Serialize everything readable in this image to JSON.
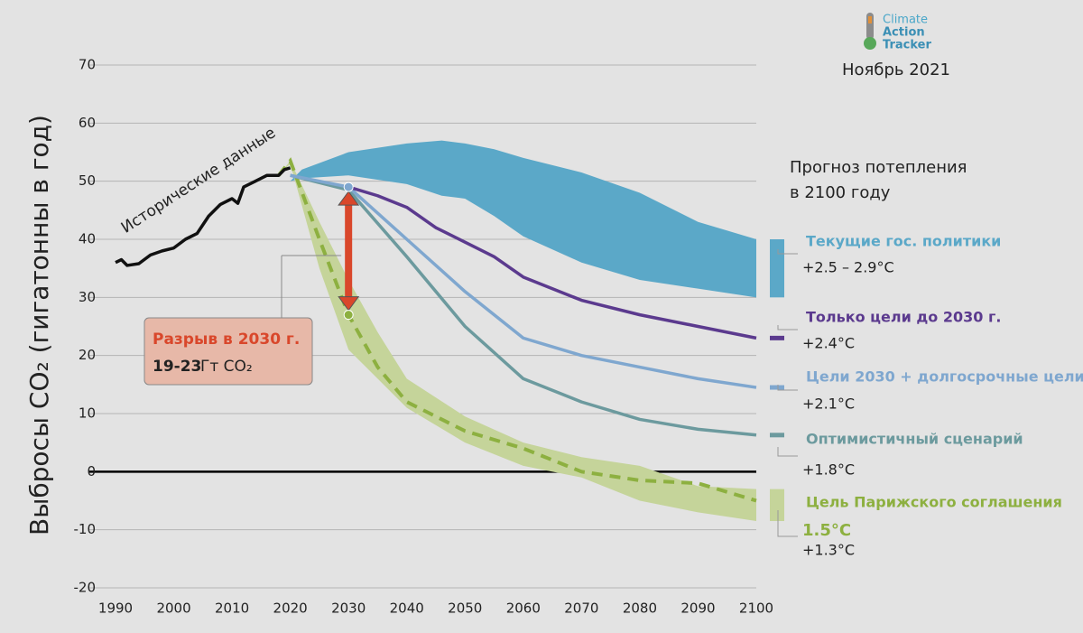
{
  "chart_data": {
    "type": "line",
    "ylabel": "Выбросы CO₂ (гигатонны в год)",
    "logo": [
      "Climate",
      "Action",
      "Tracker"
    ],
    "date": "Ноябрь 2021",
    "legend_title": [
      "Прогноз потепления",
      "в 2100 году"
    ],
    "xlim": [
      1990,
      2100
    ],
    "xticks": [
      1990,
      2000,
      2010,
      2020,
      2030,
      2040,
      2050,
      2060,
      2070,
      2080,
      2090,
      2100
    ],
    "ylim": [
      -20,
      70
    ],
    "yticks": [
      -20,
      -10,
      0,
      10,
      20,
      30,
      40,
      50,
      60,
      70
    ],
    "grid": true,
    "series": [
      {
        "name": "Исторические данные",
        "kind": "line",
        "color": "#111111",
        "x": [
          1990,
          1991,
          1992,
          1994,
          1996,
          1998,
          2000,
          2002,
          2004,
          2006,
          2008,
          2009,
          2010,
          2011,
          2012,
          2014,
          2016,
          2018,
          2019,
          2020
        ],
        "values": [
          36,
          36.5,
          35.5,
          35.8,
          37.3,
          38,
          38.5,
          40,
          41,
          44,
          46,
          46.5,
          47,
          46.2,
          49,
          50,
          51,
          51,
          52,
          52.3
        ]
      },
      {
        "name": "Текущие гос. политики",
        "warming": "+2.5 – 2.9°C",
        "kind": "band",
        "color": "#5ba8c8",
        "x": [
          2020,
          2022,
          2030,
          2040,
          2046,
          2050,
          2055,
          2060,
          2070,
          2080,
          2090,
          2100
        ],
        "upper": [
          50,
          52,
          55,
          56.5,
          57,
          56.5,
          55.5,
          54,
          51.5,
          48,
          43,
          40
        ],
        "lower": [
          50,
          50.5,
          51,
          49.5,
          47.5,
          47,
          44,
          40.5,
          36,
          33,
          31.5,
          30
        ]
      },
      {
        "name": "Только цели до 2030 г.",
        "warming": "+2.4°C",
        "kind": "line",
        "color": "#5b3a8e",
        "x": [
          2030,
          2035,
          2040,
          2045,
          2050,
          2055,
          2060,
          2070,
          2080,
          2090,
          2100
        ],
        "values": [
          49,
          47.5,
          45.5,
          42,
          39.5,
          37,
          33.5,
          29.5,
          27,
          25,
          23
        ]
      },
      {
        "name": "Цели 2030 + долгосрочные цели",
        "warming": "+2.1°C",
        "kind": "line",
        "color": "#7fa7cf",
        "x": [
          2020,
          2030,
          2040,
          2050,
          2060,
          2070,
          2080,
          2090,
          2100
        ],
        "values": [
          51,
          49,
          40,
          31,
          23,
          20,
          18,
          16,
          14.5
        ]
      },
      {
        "name": "Оптимистичный сценарий",
        "warming": "+1.8°C",
        "kind": "line",
        "color": "#6c9a9e",
        "x": [
          2020,
          2030,
          2040,
          2050,
          2060,
          2070,
          2080,
          2090,
          2100
        ],
        "values": [
          51,
          48.5,
          37,
          25,
          16,
          12,
          9,
          7.3,
          6.3
        ]
      },
      {
        "name": "Цель Парижского соглашения",
        "target": "1.5°C",
        "warming": "+1.3°C",
        "kind": "band",
        "color": "#c5d49a",
        "line_color": "#8db040",
        "x": [
          2018,
          2020,
          2025,
          2030,
          2035,
          2040,
          2050,
          2060,
          2070,
          2080,
          2090,
          2100
        ],
        "values": [
          51,
          53.5,
          40,
          27,
          18,
          12,
          7,
          4,
          0,
          -1.5,
          -2,
          -5
        ],
        "upper": [
          51,
          53.5,
          43,
          33,
          24,
          16,
          9.5,
          5,
          2.5,
          1,
          -2.5,
          -3
        ],
        "lower": [
          51,
          53,
          35,
          21,
          16,
          11,
          5,
          1,
          -1,
          -5,
          -7,
          -8.5
        ]
      }
    ],
    "gap": {
      "year": 2030,
      "from": 49,
      "to": 27,
      "title": "Разрыв в 2030 г.",
      "range": "19-23",
      "unit": "Гт CO₂",
      "color": "#d9472b"
    }
  }
}
